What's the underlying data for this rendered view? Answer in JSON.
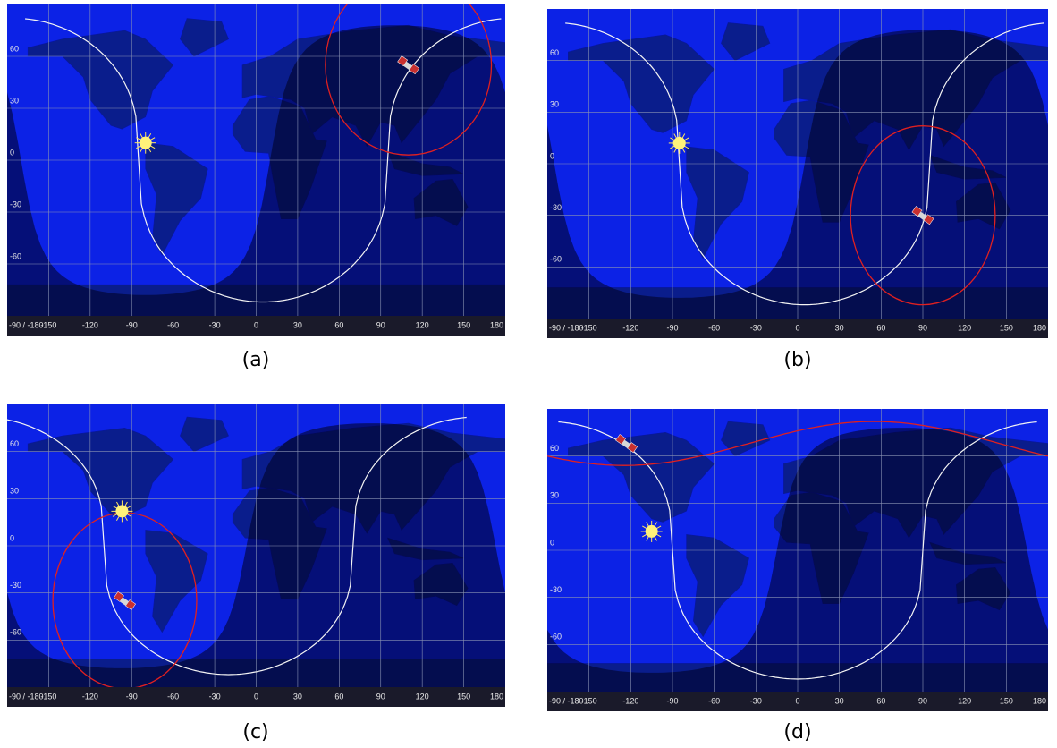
{
  "axes": {
    "lat_labels": [
      "60",
      "30",
      "0",
      "-30",
      "-60"
    ],
    "lon_labels": [
      "-90 / -180",
      "-150",
      "-120",
      "-90",
      "-60",
      "-30",
      "0",
      "30",
      "60",
      "90",
      "120",
      "150",
      "180"
    ]
  },
  "panels": [
    {
      "caption": "(a)"
    },
    {
      "caption": "(b)"
    },
    {
      "caption": "(c)"
    },
    {
      "caption": "(d)"
    }
  ]
}
